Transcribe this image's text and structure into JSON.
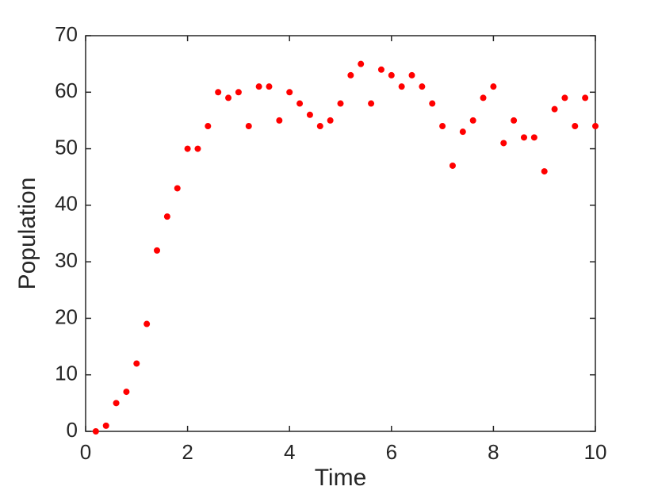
{
  "chart_data": {
    "type": "scatter",
    "x_label": "Time",
    "y_label": "Population",
    "x": [
      0.2,
      0.4,
      0.6,
      0.8,
      1.0,
      1.2,
      1.4,
      1.6,
      1.8,
      2.0,
      2.2,
      2.4,
      2.6,
      2.8,
      3.0,
      3.2,
      3.4,
      3.6,
      3.8,
      4.0,
      4.2,
      4.4,
      4.6,
      4.8,
      5.0,
      5.2,
      5.4,
      5.6,
      5.8,
      6.0,
      6.2,
      6.4,
      6.6,
      6.8,
      7.0,
      7.2,
      7.4,
      7.6,
      7.8,
      8.0,
      8.2,
      8.4,
      8.6,
      8.8,
      9.0,
      9.2,
      9.4,
      9.6,
      9.8,
      10.0
    ],
    "values": [
      0,
      1,
      5,
      7,
      12,
      19,
      32,
      38,
      43,
      50,
      50,
      54,
      60,
      59,
      60,
      54,
      61,
      61,
      55,
      60,
      58,
      56,
      54,
      55,
      58,
      63,
      65,
      58,
      64,
      63,
      61,
      63,
      61,
      58,
      54,
      47,
      53,
      55,
      59,
      61,
      51,
      55,
      52,
      52,
      46,
      57,
      59,
      54,
      59,
      54
    ],
    "color": "#ff0000",
    "xlim": [
      0,
      10
    ],
    "xticks": [
      0,
      2,
      4,
      6,
      8,
      10
    ],
    "ylim": [
      0,
      70
    ],
    "yticks": [
      0,
      10,
      20,
      30,
      40,
      50,
      60,
      70
    ]
  }
}
